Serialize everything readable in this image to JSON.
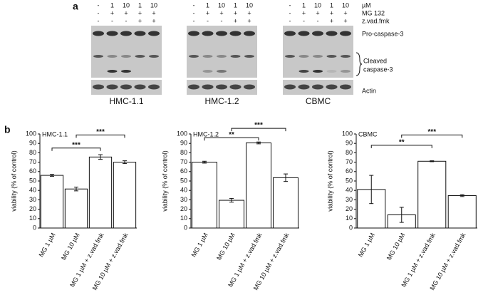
{
  "panel_a": {
    "label": "a",
    "rows": [
      {
        "label": "µM",
        "cells": [
          "-",
          "1",
          "10",
          "1",
          "10"
        ]
      },
      {
        "label": "MG 132",
        "cells": [
          "-",
          "+",
          "+",
          "+",
          "+"
        ]
      },
      {
        "label": "z.vad.fmk",
        "cells": [
          "-",
          "-",
          "-",
          "+",
          "+"
        ]
      }
    ],
    "groups": [
      "HMC-1.1",
      "HMC-1.2",
      "CBMC"
    ],
    "bands": [
      "Pro-caspase-3",
      "Cleaved",
      "caspase-3",
      "Actin"
    ]
  },
  "panel_b": {
    "label": "b"
  },
  "chart_data": [
    {
      "type": "bar",
      "title": "HMC-1.1",
      "y_label": "viability (% of control)",
      "categories": [
        "MG 1 µM",
        "MG 10 µM",
        "MG 1 µM + z.vad.fmk",
        "MG 10 µM + z.vad.fmk"
      ],
      "values": [
        56,
        41.5,
        75.5,
        70
      ],
      "errors": [
        1,
        2,
        2.5,
        1.5
      ],
      "color": "#ffffff",
      "ylim": [
        0,
        100
      ],
      "yticks": [
        0,
        10,
        20,
        30,
        40,
        50,
        60,
        70,
        80,
        90,
        100
      ],
      "annotations": [
        {
          "text": "***",
          "between": [
            0,
            2
          ],
          "y": 85
        },
        {
          "text": "***",
          "between": [
            1,
            3
          ],
          "y": 99
        }
      ]
    },
    {
      "type": "bar",
      "title": "HMC-1.2",
      "y_label": "viability (% of control)",
      "categories": [
        "MG 1 µM",
        "MG 10 µM",
        "MG 1 µM + z.vad.fmk",
        "MG 10 µM + z.vad.fmk"
      ],
      "values": [
        70,
        29.5,
        90.5,
        53.5
      ],
      "errors": [
        1,
        2,
        1,
        4
      ],
      "color": "#ffffff",
      "ylim": [
        0,
        100
      ],
      "yticks": [
        0,
        10,
        20,
        30,
        40,
        50,
        60,
        70,
        80,
        90,
        100
      ],
      "annotations": [
        {
          "text": "**",
          "between": [
            0,
            2
          ],
          "y": 96
        },
        {
          "text": "***",
          "between": [
            1,
            3
          ],
          "y": 106
        }
      ]
    },
    {
      "type": "bar",
      "title": "CBMC",
      "y_label": "viability (% of control)",
      "categories": [
        "MG 1 µM",
        "MG 10 µM",
        "MG 1 µM + z.vad.fmk",
        "MG 10 µM + z.vad.fmk"
      ],
      "values": [
        41,
        14,
        71,
        34.5
      ],
      "errors": [
        15,
        8,
        0.5,
        1
      ],
      "color": "#ffffff",
      "ylim": [
        0,
        100
      ],
      "yticks": [
        0,
        10,
        20,
        30,
        40,
        50,
        60,
        70,
        80,
        90,
        100
      ],
      "annotations": [
        {
          "text": "**",
          "between": [
            0,
            2
          ],
          "y": 88
        },
        {
          "text": "***",
          "between": [
            1,
            3
          ],
          "y": 99
        }
      ]
    }
  ]
}
